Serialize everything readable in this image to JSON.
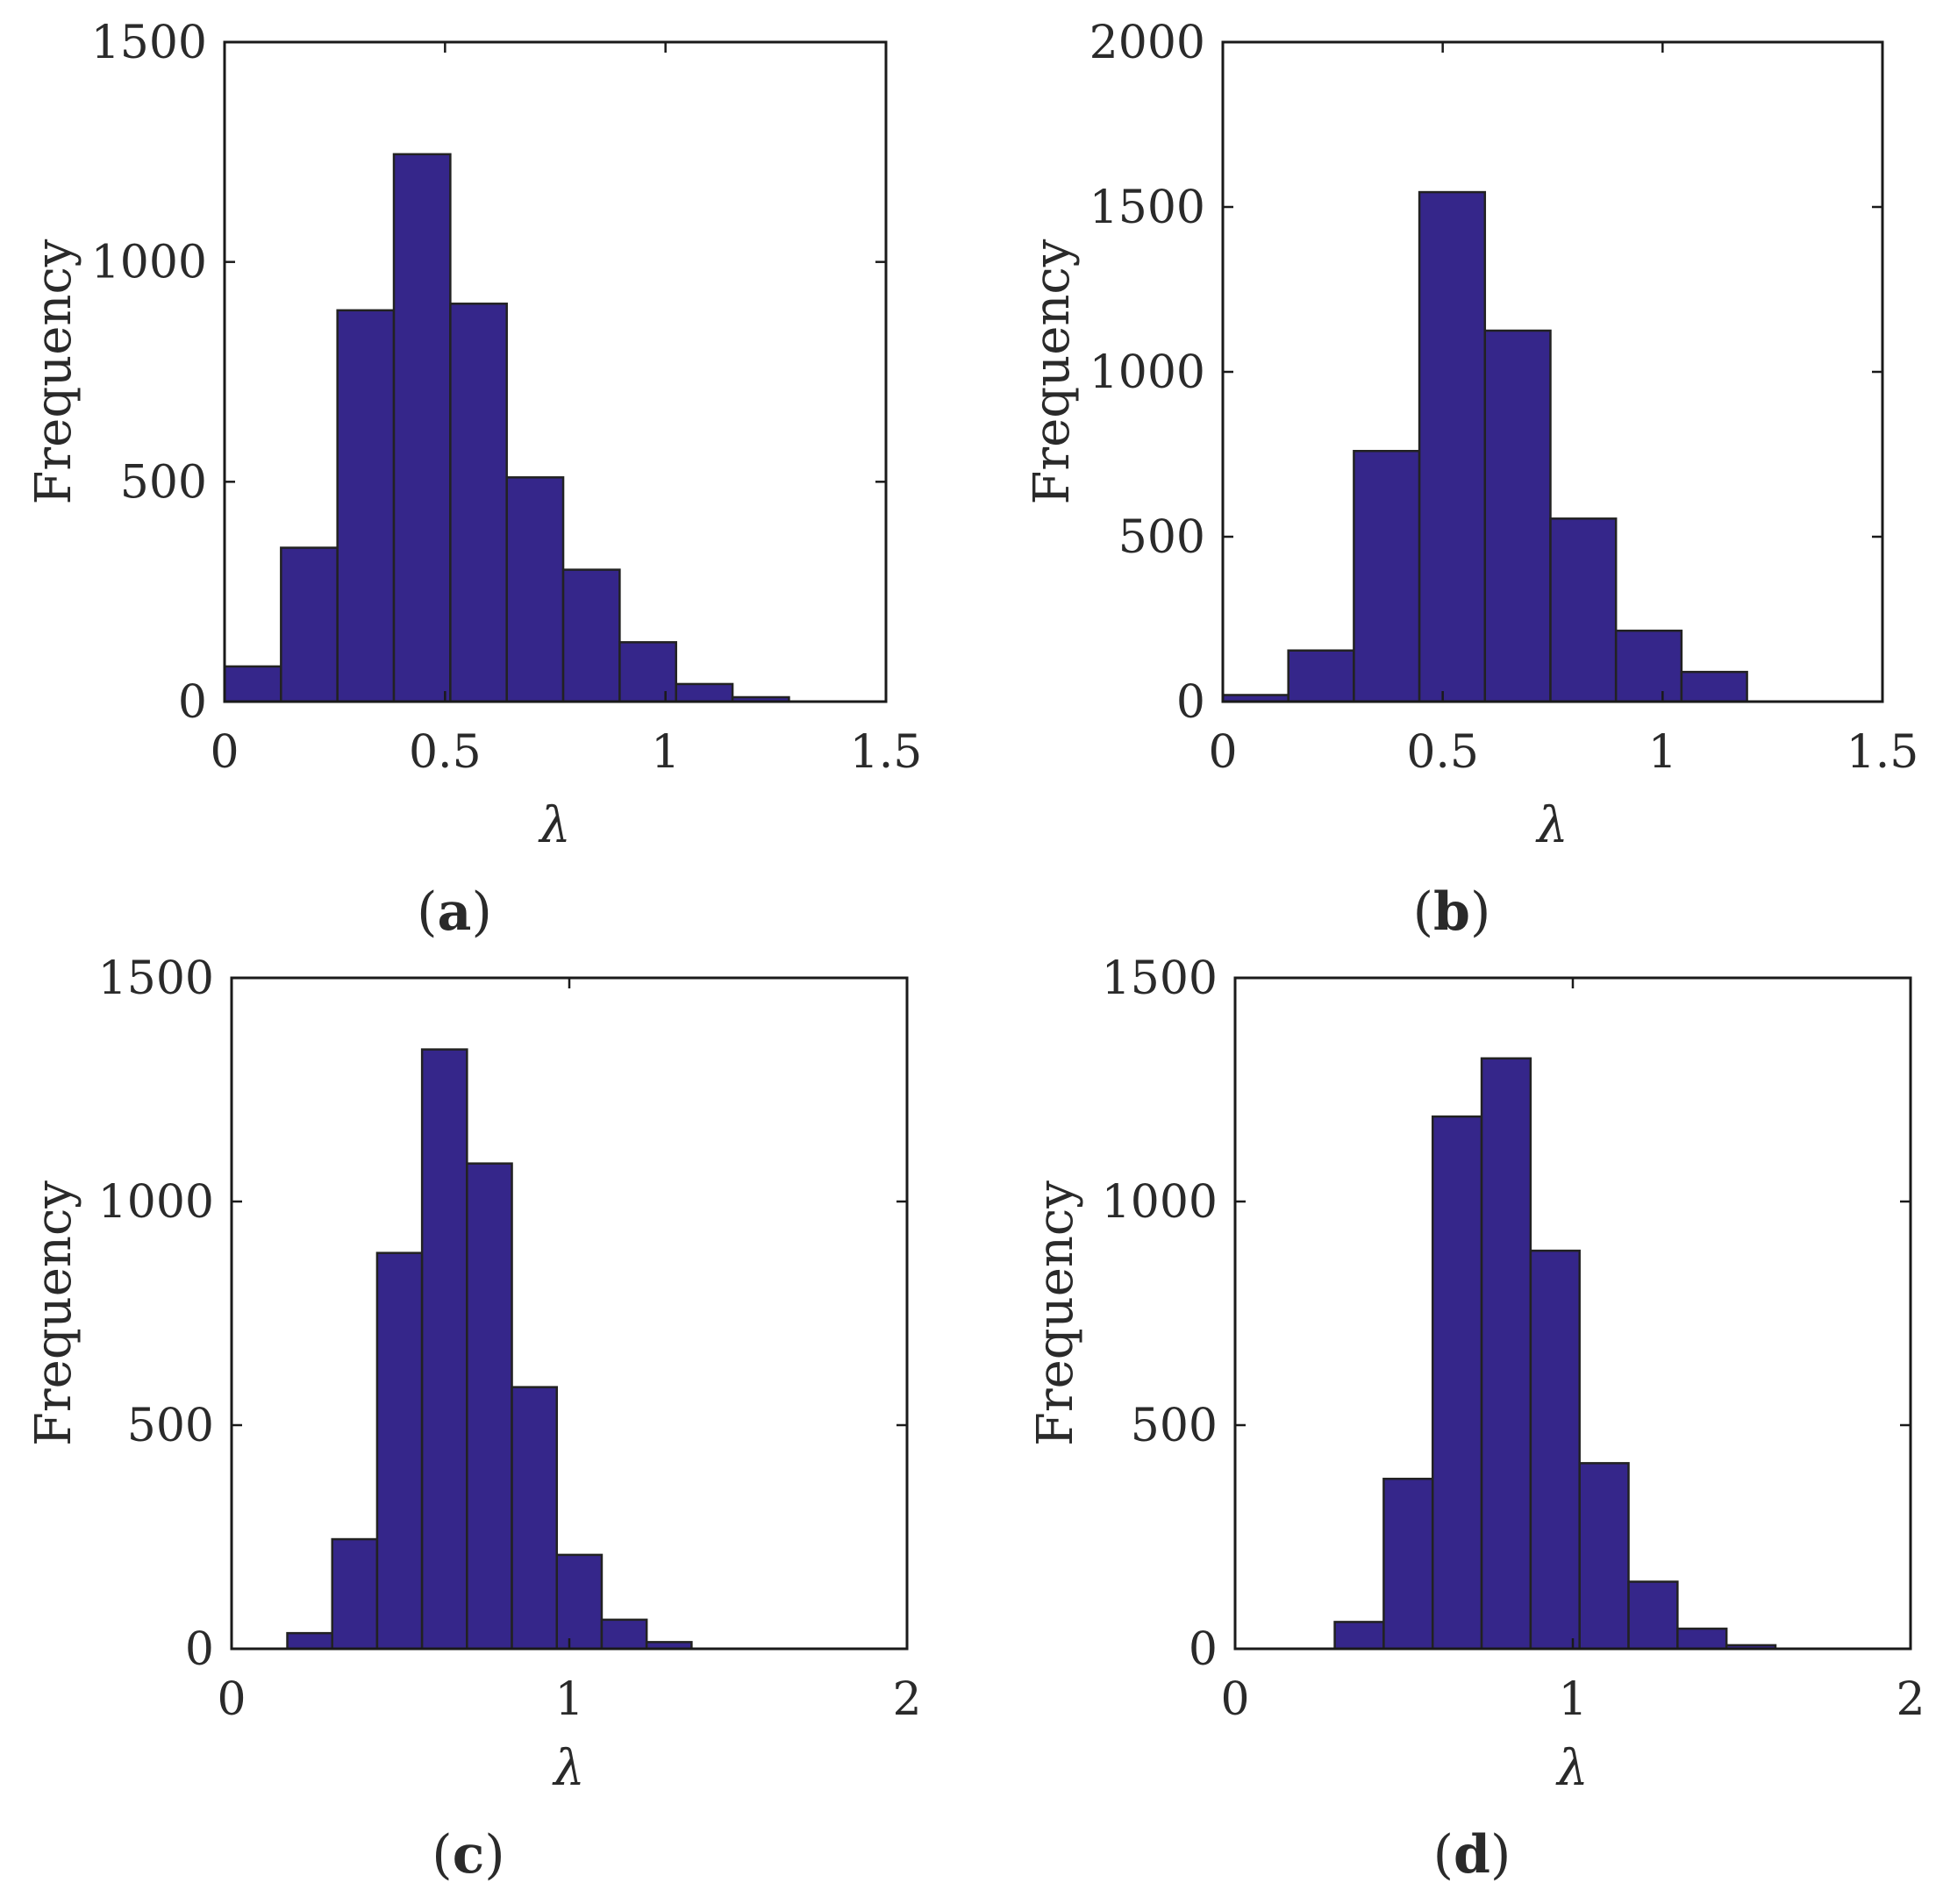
{
  "colors": {
    "bar_fill": "#35268a",
    "bar_edge": "#222222",
    "axis": "#1a1a1a",
    "text": "#2a2a2a"
  },
  "chart_data": [
    {
      "id": "a",
      "type": "bar",
      "panel_label": "a",
      "xlabel": "λ",
      "ylabel": "Frequency",
      "xlim": [
        0,
        1.5
      ],
      "ylim": [
        0,
        1500
      ],
      "xticks": [
        0,
        0.5,
        1,
        1.5
      ],
      "xtick_labels": [
        "0",
        "0.5",
        "1",
        "1.5"
      ],
      "yticks": [
        0,
        500,
        1000,
        1500
      ],
      "ytick_labels": [
        "0",
        "500",
        "1000",
        "1500"
      ],
      "bin_edges": [
        0,
        0.128,
        0.256,
        0.384,
        0.512,
        0.64,
        0.768,
        0.896,
        1.024,
        1.152,
        1.28
      ],
      "values": [
        80,
        350,
        890,
        1245,
        905,
        510,
        300,
        135,
        40,
        10
      ]
    },
    {
      "id": "b",
      "type": "bar",
      "panel_label": "b",
      "xlabel": "λ",
      "ylabel": "Frequency",
      "xlim": [
        0,
        1.5
      ],
      "ylim": [
        0,
        2000
      ],
      "xticks": [
        0,
        0.5,
        1,
        1.5
      ],
      "xtick_labels": [
        "0",
        "0.5",
        "1",
        "1.5"
      ],
      "yticks": [
        0,
        500,
        1000,
        1500,
        2000
      ],
      "ytick_labels": [
        "0",
        "500",
        "1000",
        "1500",
        "2000"
      ],
      "bin_edges": [
        0,
        0.149,
        0.298,
        0.447,
        0.596,
        0.745,
        0.894,
        1.043,
        1.192
      ],
      "values": [
        20,
        155,
        760,
        1545,
        1125,
        555,
        215,
        90
      ]
    },
    {
      "id": "c",
      "type": "bar",
      "panel_label": "c",
      "xlabel": "λ",
      "ylabel": "Frequency",
      "xlim": [
        0,
        2
      ],
      "ylim": [
        0,
        1500
      ],
      "xticks": [
        0,
        1,
        2
      ],
      "xtick_labels": [
        "0",
        "1",
        "2"
      ],
      "yticks": [
        0,
        500,
        1000,
        1500
      ],
      "ytick_labels": [
        "0",
        "500",
        "1000",
        "1500"
      ],
      "bin_edges": [
        0.165,
        0.298,
        0.431,
        0.564,
        0.697,
        0.83,
        0.963,
        1.096,
        1.229,
        1.362
      ],
      "values": [
        35,
        245,
        885,
        1340,
        1085,
        585,
        210,
        65,
        15
      ]
    },
    {
      "id": "d",
      "type": "bar",
      "panel_label": "d",
      "xlabel": "λ",
      "ylabel": "Frequency",
      "xlim": [
        0,
        2
      ],
      "ylim": [
        0,
        1500
      ],
      "xticks": [
        0,
        1,
        2
      ],
      "xtick_labels": [
        "0",
        "1",
        "2"
      ],
      "yticks": [
        0,
        500,
        1000,
        1500
      ],
      "ytick_labels": [
        "0",
        "500",
        "1000",
        "1500"
      ],
      "bin_edges": [
        0.295,
        0.44,
        0.585,
        0.73,
        0.875,
        1.02,
        1.165,
        1.31,
        1.455,
        1.6
      ],
      "values": [
        60,
        380,
        1190,
        1320,
        890,
        415,
        150,
        45,
        8
      ]
    }
  ]
}
